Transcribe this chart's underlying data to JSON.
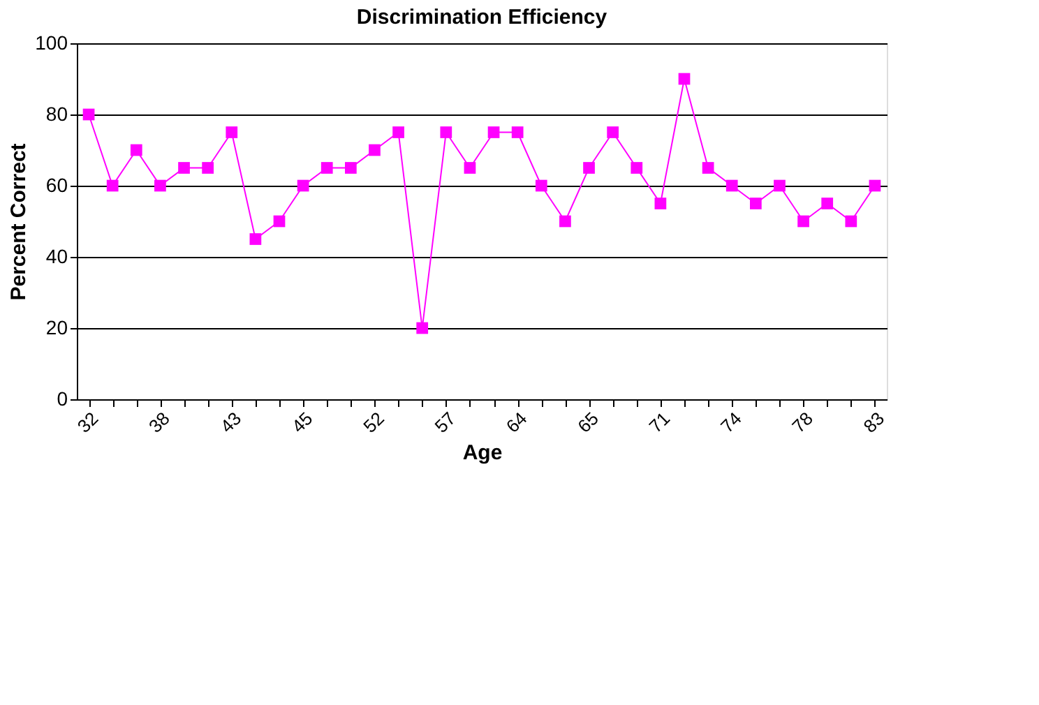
{
  "chart_data": {
    "type": "line",
    "title": "Discrimination Efficiency",
    "xlabel": "Age",
    "ylabel": "Percent Correct",
    "categories": [
      "32",
      null,
      null,
      "38",
      null,
      null,
      "43",
      null,
      null,
      "45",
      null,
      null,
      "52",
      null,
      null,
      "57",
      null,
      null,
      "64",
      null,
      null,
      "65",
      null,
      null,
      "71",
      null,
      null,
      "74",
      null,
      null,
      "78",
      null,
      null,
      "83"
    ],
    "series": [
      {
        "color": "#ff00ff",
        "values": [
          80,
          60,
          70,
          60,
          65,
          65,
          75,
          45,
          50,
          60,
          65,
          65,
          70,
          75,
          20,
          75,
          65,
          75,
          75,
          60,
          50,
          65,
          75,
          65,
          55,
          90,
          65,
          60,
          55,
          60,
          50,
          55,
          50,
          60
        ]
      }
    ],
    "ylim": [
      0,
      100
    ],
    "yticks": [
      0,
      20,
      40,
      60,
      80,
      100
    ],
    "grid": "y",
    "legend": false,
    "marker": "square",
    "line_style": "solid"
  }
}
